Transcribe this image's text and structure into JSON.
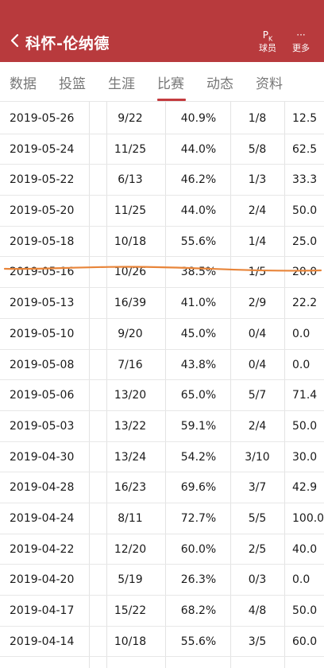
{
  "header": {
    "title": "科怀-伦纳德",
    "pk_glyph": "P",
    "pk_sub": "K",
    "pk_label": "球员",
    "more_glyph": "···",
    "more_label": "更多"
  },
  "tabs": [
    {
      "label": "数据",
      "active": false
    },
    {
      "label": "投篮",
      "active": false
    },
    {
      "label": "生涯",
      "active": false
    },
    {
      "label": "比赛",
      "active": true
    },
    {
      "label": "动态",
      "active": false
    },
    {
      "label": "资料",
      "active": false
    }
  ],
  "colors": {
    "header_bg": "#b83a3d",
    "accent": "#c43b3f",
    "annotation": "#e8853a"
  },
  "rows": [
    {
      "date": "2019-05-26",
      "fg": "9/22",
      "fg_pct": "40.9%",
      "three": "1/8",
      "three_pct": "12.5"
    },
    {
      "date": "2019-05-24",
      "fg": "11/25",
      "fg_pct": "44.0%",
      "three": "5/8",
      "three_pct": "62.5"
    },
    {
      "date": "2019-05-22",
      "fg": "6/13",
      "fg_pct": "46.2%",
      "three": "1/3",
      "three_pct": "33.3"
    },
    {
      "date": "2019-05-20",
      "fg": "11/25",
      "fg_pct": "44.0%",
      "three": "2/4",
      "three_pct": "50.0"
    },
    {
      "date": "2019-05-18",
      "fg": "10/18",
      "fg_pct": "55.6%",
      "three": "1/4",
      "three_pct": "25.0"
    },
    {
      "date": "2019-05-16",
      "fg": "10/26",
      "fg_pct": "38.5%",
      "three": "1/5",
      "three_pct": "20.0"
    },
    {
      "date": "2019-05-13",
      "fg": "16/39",
      "fg_pct": "41.0%",
      "three": "2/9",
      "three_pct": "22.2"
    },
    {
      "date": "2019-05-10",
      "fg": "9/20",
      "fg_pct": "45.0%",
      "three": "0/4",
      "three_pct": "0.0"
    },
    {
      "date": "2019-05-08",
      "fg": "7/16",
      "fg_pct": "43.8%",
      "three": "0/4",
      "three_pct": "0.0"
    },
    {
      "date": "2019-05-06",
      "fg": "13/20",
      "fg_pct": "65.0%",
      "three": "5/7",
      "three_pct": "71.4"
    },
    {
      "date": "2019-05-03",
      "fg": "13/22",
      "fg_pct": "59.1%",
      "three": "2/4",
      "three_pct": "50.0"
    },
    {
      "date": "2019-04-30",
      "fg": "13/24",
      "fg_pct": "54.2%",
      "three": "3/10",
      "three_pct": "30.0"
    },
    {
      "date": "2019-04-28",
      "fg": "16/23",
      "fg_pct": "69.6%",
      "three": "3/7",
      "three_pct": "42.9"
    },
    {
      "date": "2019-04-24",
      "fg": "8/11",
      "fg_pct": "72.7%",
      "three": "5/5",
      "three_pct": "100.0"
    },
    {
      "date": "2019-04-22",
      "fg": "12/20",
      "fg_pct": "60.0%",
      "three": "2/5",
      "three_pct": "40.0"
    },
    {
      "date": "2019-04-20",
      "fg": "5/19",
      "fg_pct": "26.3%",
      "three": "0/3",
      "three_pct": "0.0"
    },
    {
      "date": "2019-04-17",
      "fg": "15/22",
      "fg_pct": "68.2%",
      "three": "4/8",
      "three_pct": "50.0"
    },
    {
      "date": "2019-04-14",
      "fg": "10/18",
      "fg_pct": "55.6%",
      "three": "3/5",
      "three_pct": "60.0"
    }
  ]
}
